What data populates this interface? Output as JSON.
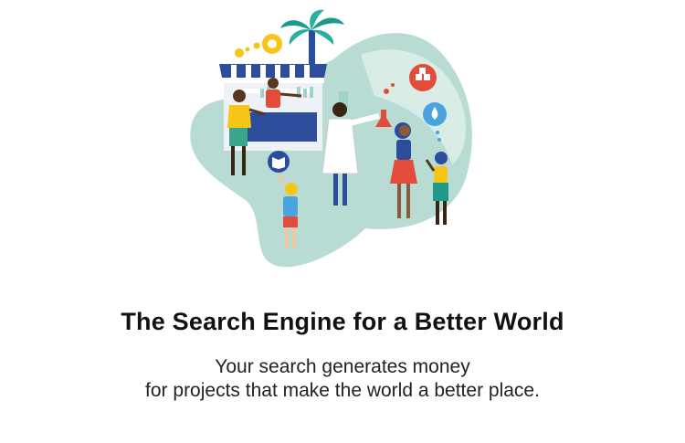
{
  "hero": {
    "title": "The Search Engine for a Better World",
    "subtitle_lines": [
      "Your search generates money",
      "for projects that make the world a better place."
    ]
  },
  "illustration": {
    "icons": [
      "sun-icon",
      "palm-tree-icon",
      "market-stall-icon",
      "book-icon",
      "boxes-icon",
      "water-drop-icon",
      "flask-icon"
    ],
    "colors": {
      "blob": "#b8dcd4",
      "blob_back": "#d9ece6",
      "stall_blue": "#2b4d9c",
      "accent_red": "#e34b3a",
      "accent_yellow": "#f5c518",
      "palm_green": "#1f9a8a"
    }
  }
}
